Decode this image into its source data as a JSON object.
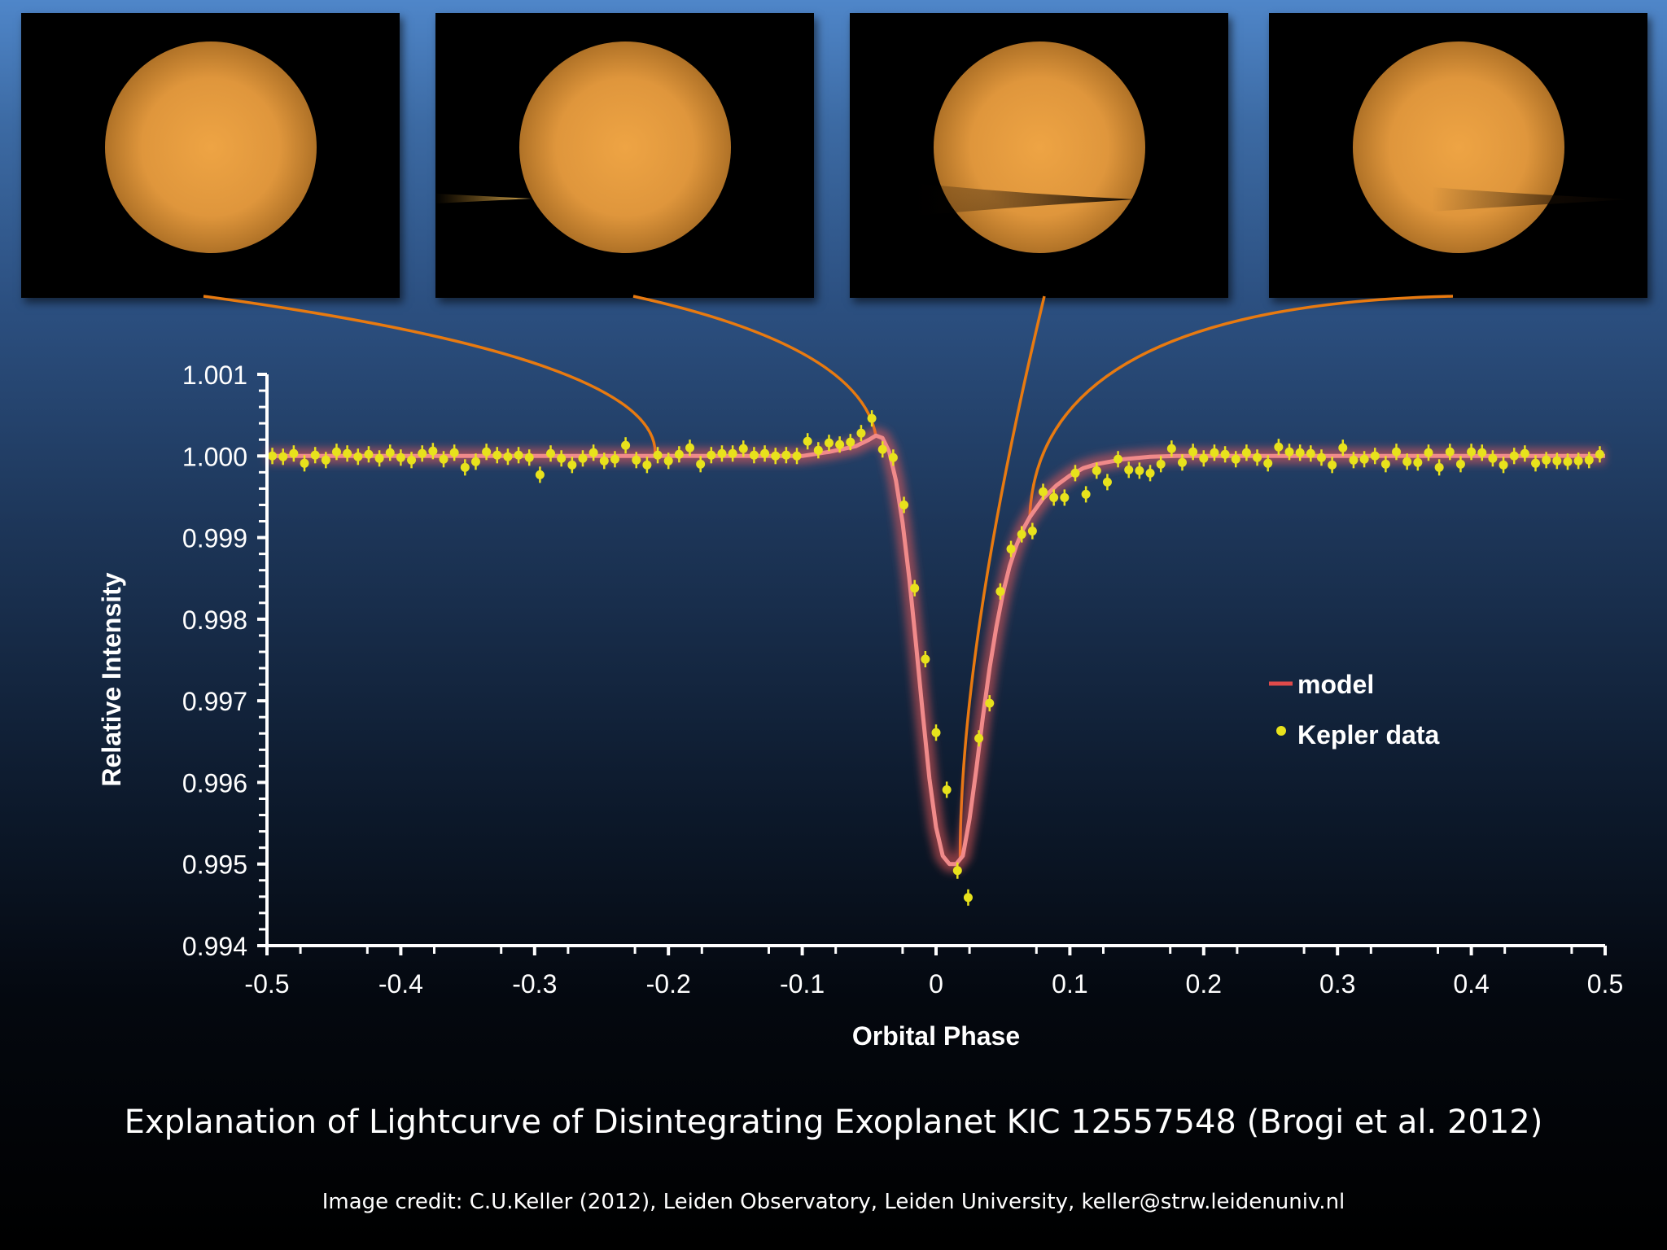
{
  "chart_data": {
    "type": "scatter",
    "xlabel": "Orbital Phase",
    "ylabel": "Relative Intensity",
    "xlim": [
      -0.5,
      0.5
    ],
    "ylim": [
      0.994,
      1.001
    ],
    "x_ticks": [
      "-0.5",
      "-0.4",
      "-0.3",
      "-0.2",
      "-0.1",
      "0",
      "0.1",
      "0.2",
      "0.3",
      "0.4",
      "0.5"
    ],
    "y_ticks": [
      "1.001",
      "1.000",
      "0.999",
      "0.998",
      "0.997",
      "0.996",
      "0.995",
      "0.994"
    ],
    "legend": {
      "placement": "right-center",
      "model_label": "model",
      "data_label": "Kepler data"
    },
    "series": [
      {
        "name": "Kepler data",
        "kind": "points-with-error-bars",
        "color": "#e8e21c",
        "error": 0.0001,
        "x": [
          -0.496,
          -0.488,
          -0.48,
          -0.472,
          -0.464,
          -0.456,
          -0.448,
          -0.44,
          -0.432,
          -0.424,
          -0.416,
          -0.408,
          -0.4,
          -0.392,
          -0.384,
          -0.376,
          -0.368,
          -0.36,
          -0.352,
          -0.344,
          -0.336,
          -0.328,
          -0.32,
          -0.312,
          -0.304,
          -0.296,
          -0.288,
          -0.28,
          -0.272,
          -0.264,
          -0.256,
          -0.248,
          -0.24,
          -0.232,
          -0.224,
          -0.216,
          -0.208,
          -0.2,
          -0.192,
          -0.184,
          -0.176,
          -0.168,
          -0.16,
          -0.152,
          -0.144,
          -0.136,
          -0.128,
          -0.12,
          -0.112,
          -0.104,
          -0.096,
          -0.088,
          -0.08,
          -0.072,
          -0.064,
          -0.056,
          -0.048,
          -0.04,
          -0.032,
          -0.024,
          -0.016,
          -0.008,
          0.0,
          0.008,
          0.016,
          0.024,
          0.032,
          0.04,
          0.048,
          0.056,
          0.064,
          0.072,
          0.08,
          0.088,
          0.096,
          0.104,
          0.112,
          0.12,
          0.128,
          0.136,
          0.144,
          0.152,
          0.16,
          0.168,
          0.176,
          0.184,
          0.192,
          0.2,
          0.208,
          0.216,
          0.224,
          0.232,
          0.24,
          0.248,
          0.256,
          0.264,
          0.272,
          0.28,
          0.288,
          0.296,
          0.304,
          0.312,
          0.32,
          0.328,
          0.336,
          0.344,
          0.352,
          0.36,
          0.368,
          0.376,
          0.384,
          0.392,
          0.4,
          0.408,
          0.416,
          0.424,
          0.432,
          0.44,
          0.448,
          0.456,
          0.464,
          0.472,
          0.48,
          0.488,
          0.496
        ],
        "y": [
          1.0,
          0.99999,
          1.00003,
          0.99991,
          1.00001,
          0.99995,
          1.00005,
          1.00003,
          0.99999,
          1.00002,
          0.99997,
          1.00004,
          0.99998,
          0.99995,
          1.00003,
          1.00006,
          0.99996,
          1.00004,
          0.99986,
          0.99993,
          1.00005,
          1.00001,
          0.99999,
          1.00001,
          0.99998,
          0.99977,
          1.00003,
          0.99997,
          0.99989,
          0.99997,
          1.00004,
          0.99994,
          0.99996,
          1.00013,
          0.99995,
          0.99989,
          1.00001,
          0.99994,
          1.00002,
          1.0001,
          0.9999,
          1.00001,
          1.00003,
          1.00003,
          1.00009,
          1.00001,
          1.00003,
          1.0,
          1.00001,
          1.0,
          1.00018,
          1.00007,
          1.00016,
          1.00014,
          1.00017,
          1.00028,
          1.00046,
          1.00008,
          0.99998,
          0.9994,
          0.99838,
          0.99751,
          0.99661,
          0.99591,
          0.99492,
          0.99459,
          0.99654,
          0.99697,
          0.99834,
          0.99886,
          0.99904,
          0.99908,
          0.99956,
          0.99949,
          0.99949,
          0.99979,
          0.99953,
          0.99982,
          0.99968,
          0.99996,
          0.99983,
          0.99982,
          0.99979,
          0.9999,
          1.00009,
          0.99992,
          1.00005,
          0.99997,
          1.00004,
          1.00002,
          0.99996,
          1.00004,
          0.99998,
          0.99991,
          1.00011,
          1.00005,
          1.00004,
          1.00003,
          0.99998,
          0.99989,
          1.0001,
          0.99995,
          0.99996,
          1.0,
          0.9999,
          1.00005,
          0.99993,
          0.99992,
          1.00004,
          0.99986,
          1.00005,
          0.9999,
          1.00005,
          1.00004,
          0.99997,
          0.99989,
          1.0,
          1.00003,
          0.99991,
          0.99995,
          0.99994,
          0.99993,
          0.99994,
          0.99995,
          1.00002
        ]
      },
      {
        "name": "model",
        "kind": "line",
        "color": "#e04a4a",
        "x": [
          -0.5,
          -0.1,
          -0.08,
          -0.06,
          -0.05,
          -0.045,
          -0.04,
          -0.035,
          -0.03,
          -0.025,
          -0.02,
          -0.015,
          -0.01,
          -0.005,
          0.0,
          0.005,
          0.01,
          0.015,
          0.02,
          0.025,
          0.03,
          0.035,
          0.04,
          0.045,
          0.05,
          0.055,
          0.06,
          0.065,
          0.07,
          0.08,
          0.09,
          0.1,
          0.11,
          0.12,
          0.14,
          0.16,
          0.18,
          0.2,
          0.3,
          0.5
        ],
        "y": [
          1.0,
          1.0,
          1.00005,
          1.00012,
          1.0002,
          1.00025,
          1.00022,
          1.00005,
          0.9997,
          0.99918,
          0.9985,
          0.9977,
          0.99685,
          0.99605,
          0.99545,
          0.9951,
          0.995,
          0.995,
          0.9951,
          0.99555,
          0.99615,
          0.9968,
          0.9974,
          0.9979,
          0.99832,
          0.99865,
          0.9989,
          0.9991,
          0.99925,
          0.99948,
          0.99964,
          0.99976,
          0.99985,
          0.9999,
          0.99996,
          0.99999,
          1.0,
          1.0,
          1.0,
          1.0
        ]
      }
    ]
  },
  "panels": [
    {
      "index": 1,
      "stage": "star only",
      "points_to_phase": -0.21
    },
    {
      "index": 2,
      "stage": "ingress",
      "points_to_phase": -0.045
    },
    {
      "index": 3,
      "stage": "mid transit",
      "points_to_phase": 0.018
    },
    {
      "index": 4,
      "stage": "egress",
      "points_to_phase": 0.07
    }
  ],
  "colors": {
    "star": "#e59a3a",
    "connector": "#e87a10",
    "data_points": "#e8e21c",
    "model_line": "#e04a4a",
    "axes": "#ffffff"
  },
  "caption": {
    "title": "Explanation of Lightcurve of Disintegrating Exoplanet KIC 12557548 (Brogi et al. 2012)",
    "credit": "Image credit: C.U.Keller (2012), Leiden Observatory, Leiden University, keller@strw.leidenuniv.nl"
  }
}
